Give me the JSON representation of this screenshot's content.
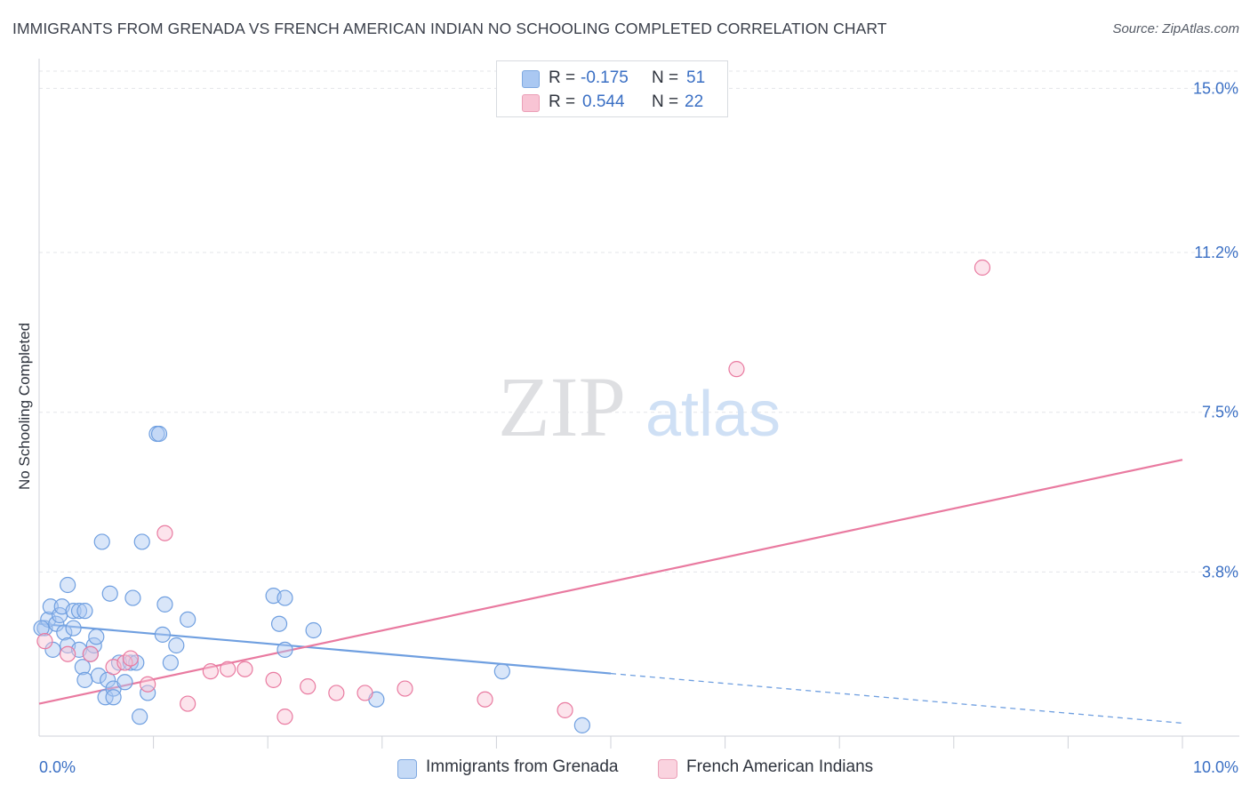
{
  "header": {
    "title": "IMMIGRANTS FROM GRENADA VS FRENCH AMERICAN INDIAN NO SCHOOLING COMPLETED CORRELATION CHART",
    "source": "Source: ZipAtlas.com"
  },
  "watermark": {
    "zip": "ZIP",
    "atlas": "atlas"
  },
  "legend": {
    "r_label": "R =",
    "n_label": "N =",
    "rows": [
      {
        "r": "-0.175",
        "n": "51",
        "color": "#aac8f2",
        "border": "#7ea8e0"
      },
      {
        "r": "0.544",
        "n": "22",
        "color": "#f8c4d4",
        "border": "#eb9fb7"
      }
    ]
  },
  "bottom_legend": {
    "items": [
      {
        "label": "Immigrants from Grenada",
        "color": "#c5daf6",
        "border": "#7ea8e0"
      },
      {
        "label": "French American Indians",
        "color": "#fad3df",
        "border": "#eb9fb7"
      }
    ]
  },
  "chart_data": {
    "type": "scatter",
    "title": "IMMIGRANTS FROM GRENADA VS FRENCH AMERICAN INDIAN NO SCHOOLING COMPLETED CORRELATION CHART",
    "xlabel": "",
    "ylabel": "No Schooling Completed",
    "xlim": [
      0,
      10
    ],
    "ylim": [
      0,
      15.4
    ],
    "x_tick_labels": [
      {
        "value": 0,
        "label": "0.0%"
      },
      {
        "value": 10,
        "label": "10.0%"
      }
    ],
    "y_tick_labels": [
      {
        "value": 3.8,
        "label": "3.8%"
      },
      {
        "value": 7.5,
        "label": "7.5%"
      },
      {
        "value": 11.2,
        "label": "11.2%"
      },
      {
        "value": 15.0,
        "label": "15.0%"
      }
    ],
    "grid": true,
    "legend_position": "top-center",
    "series": [
      {
        "name": "Immigrants from Grenada",
        "color": "#6f9fe0",
        "fill": "#aac8f2",
        "trend": {
          "x0": 0,
          "y0": 2.6,
          "x1": 5.0,
          "y1": 1.45,
          "dash_to_x": 10.0,
          "dash_to_y": 0.3
        },
        "points": [
          [
            0.05,
            2.5
          ],
          [
            0.08,
            2.7
          ],
          [
            0.1,
            3.0
          ],
          [
            0.12,
            2.0
          ],
          [
            0.15,
            2.6
          ],
          [
            0.18,
            2.8
          ],
          [
            0.2,
            3.0
          ],
          [
            0.22,
            2.4
          ],
          [
            0.25,
            2.1
          ],
          [
            0.25,
            3.5
          ],
          [
            0.3,
            2.9
          ],
          [
            0.3,
            2.5
          ],
          [
            0.35,
            2.9
          ],
          [
            0.35,
            2.0
          ],
          [
            0.38,
            1.6
          ],
          [
            0.4,
            2.9
          ],
          [
            0.4,
            1.3
          ],
          [
            0.45,
            1.9
          ],
          [
            0.48,
            2.1
          ],
          [
            0.5,
            2.3
          ],
          [
            0.52,
            1.4
          ],
          [
            0.55,
            4.5
          ],
          [
            0.58,
            0.9
          ],
          [
            0.6,
            1.3
          ],
          [
            0.62,
            3.3
          ],
          [
            0.65,
            1.1
          ],
          [
            0.65,
            0.9
          ],
          [
            0.7,
            1.7
          ],
          [
            0.75,
            1.25
          ],
          [
            0.8,
            1.7
          ],
          [
            0.82,
            3.2
          ],
          [
            0.85,
            1.7
          ],
          [
            0.88,
            0.45
          ],
          [
            0.9,
            4.5
          ],
          [
            0.95,
            1.0
          ],
          [
            1.03,
            7.0
          ],
          [
            1.05,
            7.0
          ],
          [
            1.08,
            2.35
          ],
          [
            1.1,
            3.05
          ],
          [
            1.15,
            1.7
          ],
          [
            1.2,
            2.1
          ],
          [
            1.3,
            2.7
          ],
          [
            2.05,
            3.25
          ],
          [
            2.1,
            2.6
          ],
          [
            2.15,
            3.2
          ],
          [
            2.15,
            2.0
          ],
          [
            2.4,
            2.45
          ],
          [
            2.95,
            0.85
          ],
          [
            4.05,
            1.5
          ],
          [
            4.75,
            0.25
          ],
          [
            0.02,
            2.5
          ]
        ]
      },
      {
        "name": "French American Indians",
        "color": "#e97aa0",
        "fill": "#f8c4d4",
        "trend": {
          "x0": 0,
          "y0": 0.75,
          "x1": 10.0,
          "y1": 6.4
        },
        "points": [
          [
            0.05,
            2.2
          ],
          [
            0.25,
            1.9
          ],
          [
            0.45,
            1.9
          ],
          [
            0.65,
            1.6
          ],
          [
            0.75,
            1.7
          ],
          [
            0.8,
            1.8
          ],
          [
            0.95,
            1.2
          ],
          [
            1.1,
            4.7
          ],
          [
            1.3,
            0.75
          ],
          [
            1.5,
            1.5
          ],
          [
            1.65,
            1.55
          ],
          [
            1.8,
            1.55
          ],
          [
            2.05,
            1.3
          ],
          [
            2.15,
            0.45
          ],
          [
            2.35,
            1.15
          ],
          [
            2.6,
            1.0
          ],
          [
            2.85,
            1.0
          ],
          [
            3.2,
            1.1
          ],
          [
            3.9,
            0.85
          ],
          [
            4.6,
            0.6
          ],
          [
            6.1,
            8.5
          ],
          [
            8.25,
            10.85
          ]
        ]
      }
    ]
  }
}
